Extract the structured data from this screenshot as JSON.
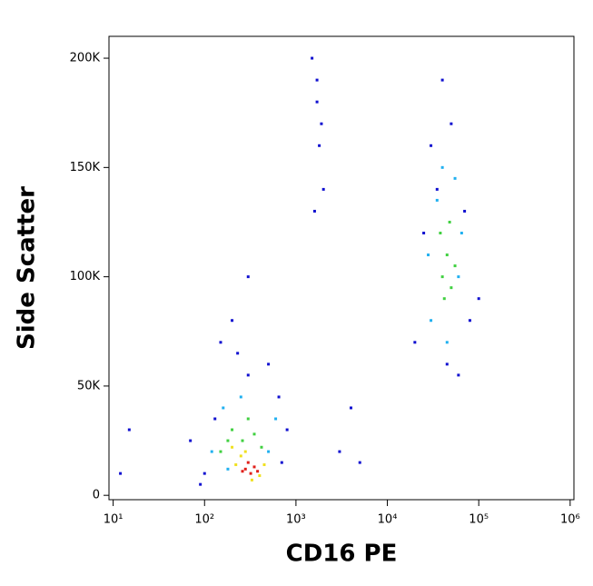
{
  "chart_data": {
    "type": "scatter",
    "xlabel": "CD16 PE",
    "ylabel": "Side Scatter",
    "xscale": "log",
    "xlim": [
      9,
      1100000
    ],
    "ylim": [
      -2000,
      210000
    ],
    "xticks": [
      {
        "value": 10,
        "label": "10¹"
      },
      {
        "value": 100,
        "label": "10²"
      },
      {
        "value": 1000,
        "label": "10³"
      },
      {
        "value": 10000,
        "label": "10⁴"
      },
      {
        "value": 100000,
        "label": "10⁵"
      },
      {
        "value": 1000000,
        "label": "10⁶"
      }
    ],
    "yticks": [
      0,
      {
        "value": 50000,
        "label": "50K"
      },
      {
        "value": 100000,
        "label": "100K"
      },
      {
        "value": 150000,
        "label": "150K"
      },
      {
        "value": 200000,
        "label": "200K"
      }
    ],
    "series": [
      {
        "color": "#1010d0",
        "x": [
          100,
          130,
          70,
          90,
          650,
          700,
          800,
          500,
          230,
          300,
          1500,
          1700,
          1800,
          2000,
          1600,
          1900,
          1700,
          20000,
          25000,
          70000,
          80000,
          30000,
          50000,
          45000,
          60000,
          35000,
          15,
          12,
          3000,
          5000,
          4000,
          200,
          300,
          150,
          100000,
          40000
        ],
        "values": [
          10000,
          35000,
          25000,
          5000,
          45000,
          15000,
          30000,
          60000,
          65000,
          55000,
          200000,
          180000,
          160000,
          140000,
          130000,
          170000,
          190000,
          70000,
          120000,
          130000,
          80000,
          160000,
          170000,
          60000,
          55000,
          140000,
          30000,
          10000,
          20000,
          15000,
          40000,
          80000,
          100000,
          70000,
          90000,
          190000
        ]
      },
      {
        "color": "#20b0f0",
        "x": [
          120,
          160,
          500,
          600,
          180,
          250,
          30000,
          60000,
          35000,
          65000,
          45000,
          28000,
          55000,
          40000
        ],
        "values": [
          20000,
          40000,
          20000,
          35000,
          12000,
          45000,
          80000,
          100000,
          135000,
          120000,
          70000,
          110000,
          145000,
          150000
        ]
      },
      {
        "color": "#40d040",
        "x": [
          180,
          200,
          260,
          150,
          350,
          420,
          300,
          40000,
          45000,
          50000,
          38000,
          55000,
          42000,
          48000
        ],
        "values": [
          25000,
          30000,
          25000,
          20000,
          28000,
          22000,
          35000,
          100000,
          110000,
          95000,
          120000,
          105000,
          90000,
          125000
        ]
      },
      {
        "color": "#f0e020",
        "x": [
          220,
          250,
          400,
          330,
          450,
          200,
          280
        ],
        "values": [
          14000,
          18000,
          9000,
          7000,
          14000,
          22000,
          20000
        ]
      },
      {
        "color": "#e0201a",
        "x": [
          280,
          320,
          350,
          300,
          380,
          260
        ],
        "values": [
          12000,
          10000,
          13000,
          15000,
          11000,
          11000
        ]
      }
    ]
  }
}
